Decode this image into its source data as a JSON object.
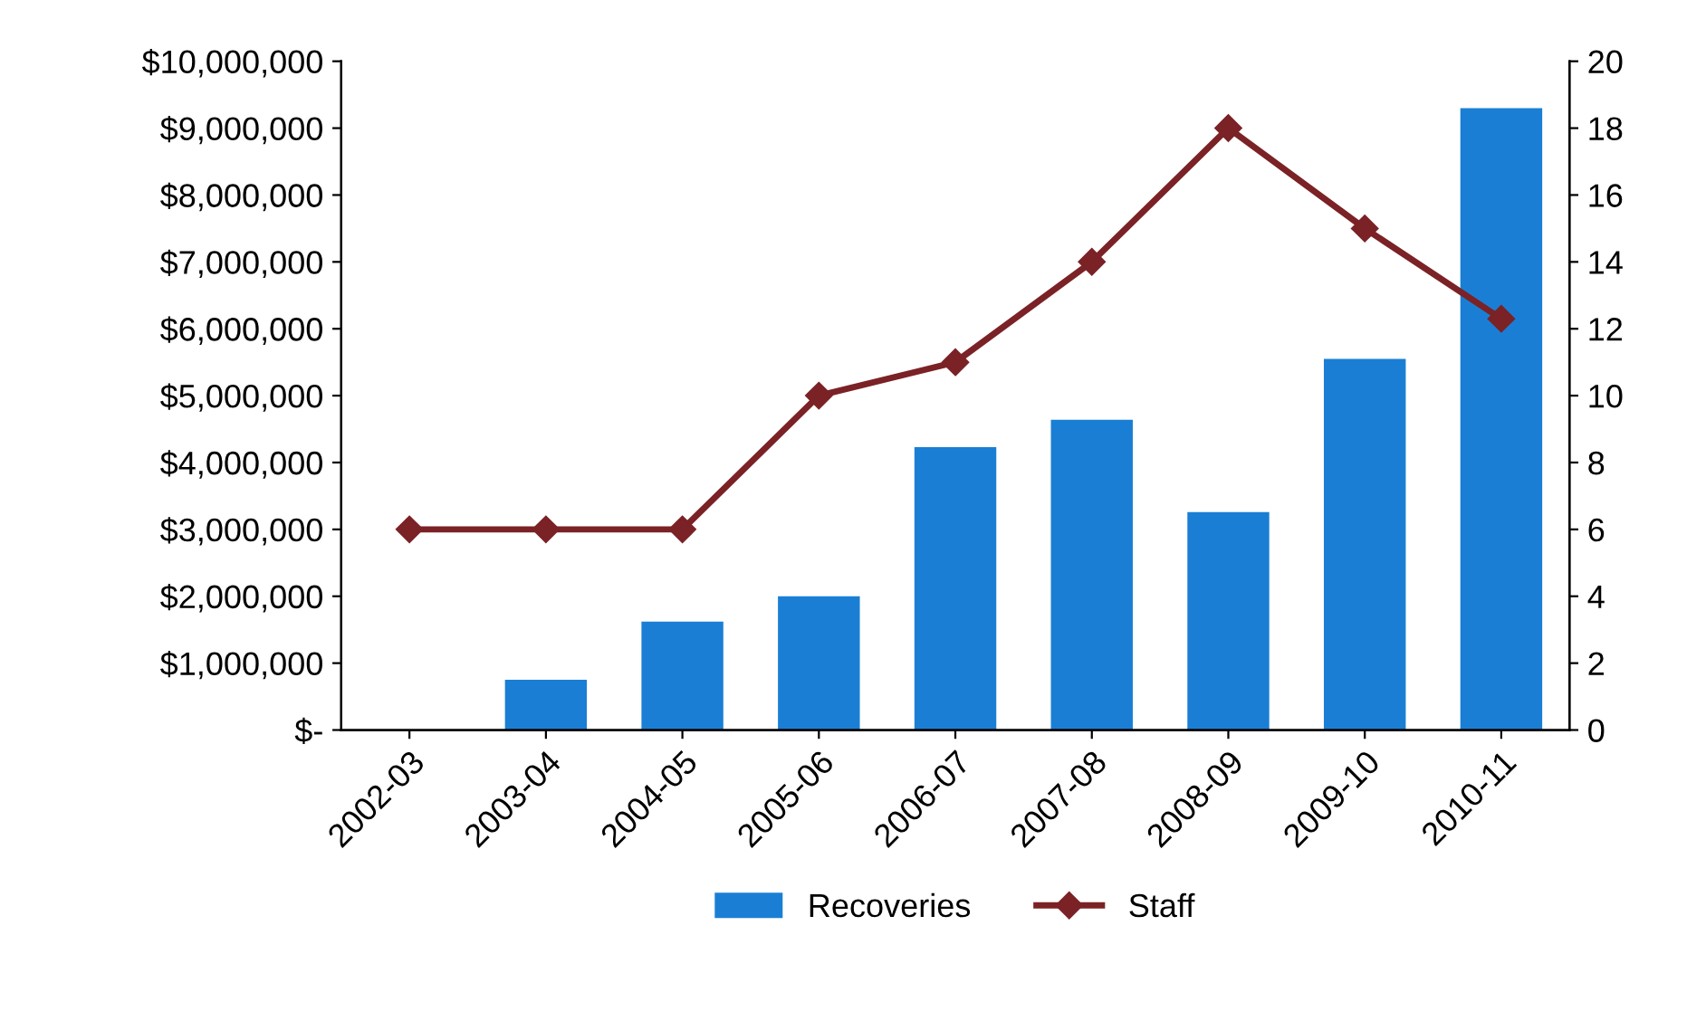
{
  "chart_data": {
    "type": "bar",
    "categories": [
      "2002-03",
      "2003-04",
      "2004-05",
      "2005-06",
      "2006-07",
      "2007-08",
      "2008-09",
      "2009-10",
      "2010-11"
    ],
    "series": [
      {
        "name": "Recoveries",
        "color": "#1a7fd4",
        "values": [
          0,
          750000,
          1620000,
          2000000,
          4230000,
          4640000,
          3260000,
          5550000,
          9300000
        ]
      },
      {
        "name": "Staff",
        "type": "line",
        "axis": "y2",
        "color": "#7b2226",
        "marker": "diamond",
        "values": [
          6,
          6,
          6,
          10,
          11,
          14,
          18,
          15,
          12.3
        ]
      }
    ],
    "ylim": [
      0,
      10000000
    ],
    "yticks": [
      {
        "value": 0,
        "label": "$-"
      },
      {
        "value": 1000000,
        "label": "$1,000,000"
      },
      {
        "value": 2000000,
        "label": "$2,000,000"
      },
      {
        "value": 3000000,
        "label": "$3,000,000"
      },
      {
        "value": 4000000,
        "label": "$4,000,000"
      },
      {
        "value": 5000000,
        "label": "$5,000,000"
      },
      {
        "value": 6000000,
        "label": "$6,000,000"
      },
      {
        "value": 7000000,
        "label": "$7,000,000"
      },
      {
        "value": 8000000,
        "label": "$8,000,000"
      },
      {
        "value": 9000000,
        "label": "$9,000,000"
      },
      {
        "value": 10000000,
        "label": "$10,000,000"
      }
    ],
    "y2lim": [
      0,
      20
    ],
    "y2ticks": [
      0,
      2,
      4,
      6,
      8,
      10,
      12,
      14,
      16,
      18,
      20
    ],
    "legend": "bottom",
    "grid": false
  }
}
